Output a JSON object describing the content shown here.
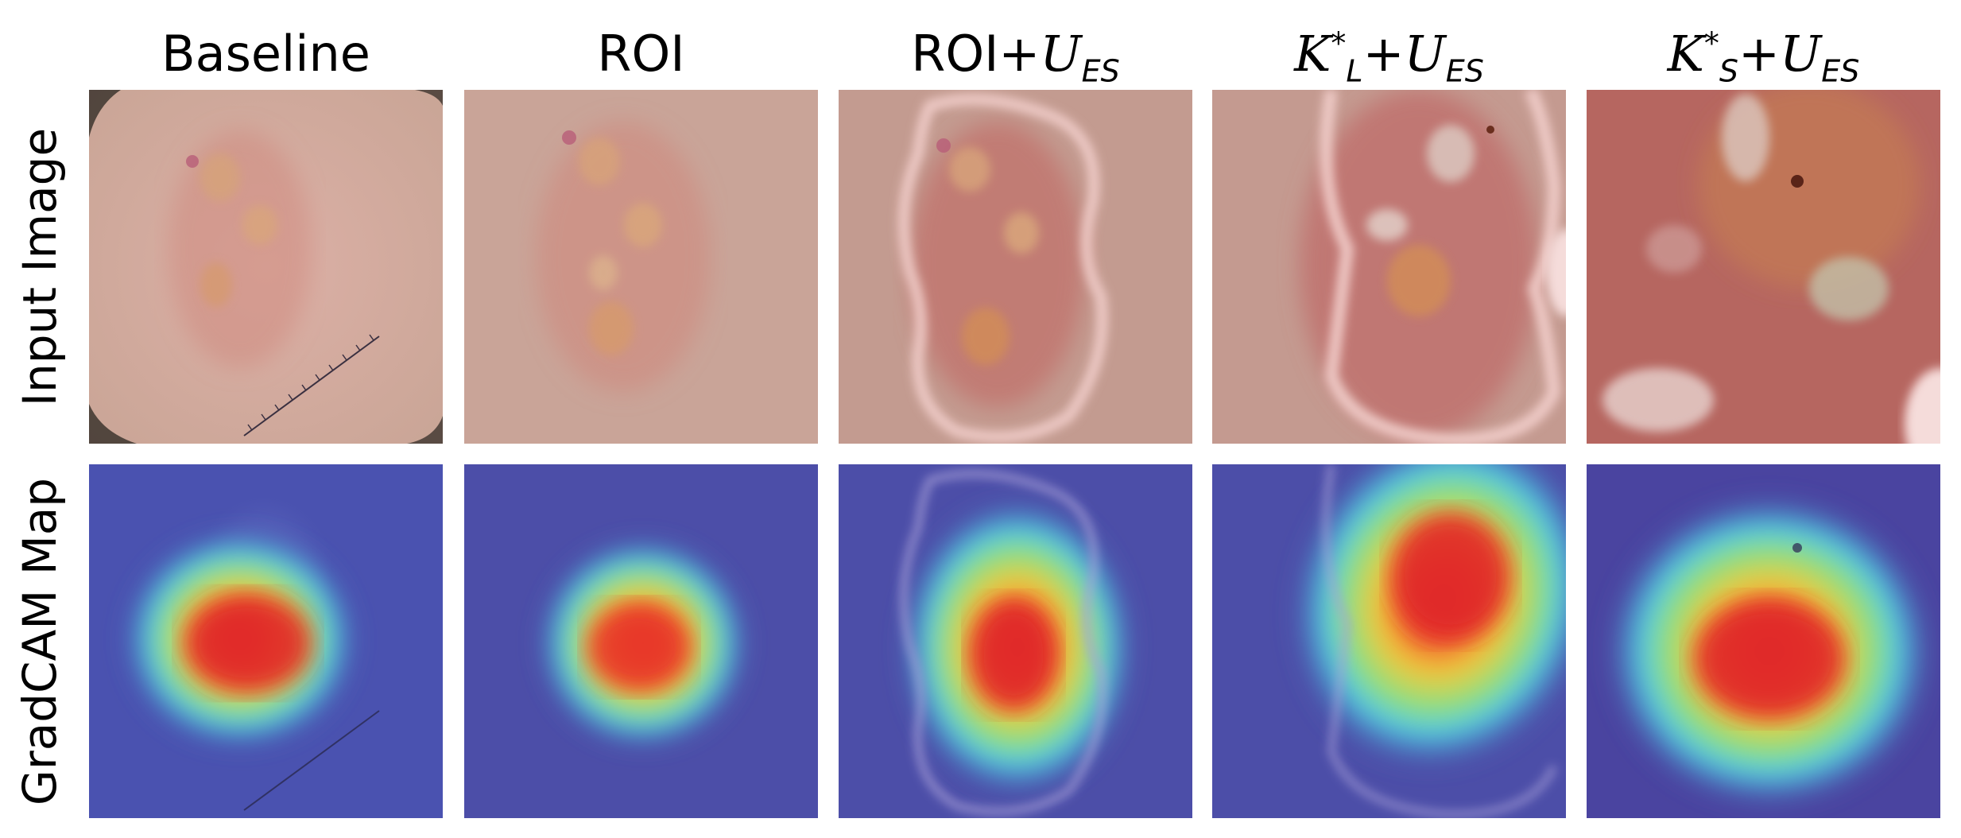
{
  "figure": {
    "columns": [
      {
        "id": "baseline",
        "label": "Baseline"
      },
      {
        "id": "roi",
        "label": "ROI"
      },
      {
        "id": "roi-ues",
        "label_prefix": "ROI+",
        "label_script": "U",
        "label_sub": "ES"
      },
      {
        "id": "kl-ues",
        "label_main": "K",
        "label_sup": "*",
        "label_sub_k": "L",
        "label_plus": "+",
        "label_script": "U",
        "label_sub": "ES"
      },
      {
        "id": "ks-ues",
        "label_main": "K",
        "label_sup": "*",
        "label_sub_k": "S",
        "label_plus": "+",
        "label_script": "U",
        "label_sub": "ES"
      }
    ],
    "rows": [
      {
        "id": "input",
        "label": "Input Image"
      },
      {
        "id": "gradcam",
        "label": "GradCAM Map"
      }
    ],
    "colors": {
      "skin": "#d9a9a0",
      "lesion": "#c9786e",
      "gradcam_bg": "#4a4fa8",
      "heat_red": "#e8302a",
      "heat_yellow": "#f2d43a",
      "heat_cyan": "#4fd8e8"
    }
  }
}
